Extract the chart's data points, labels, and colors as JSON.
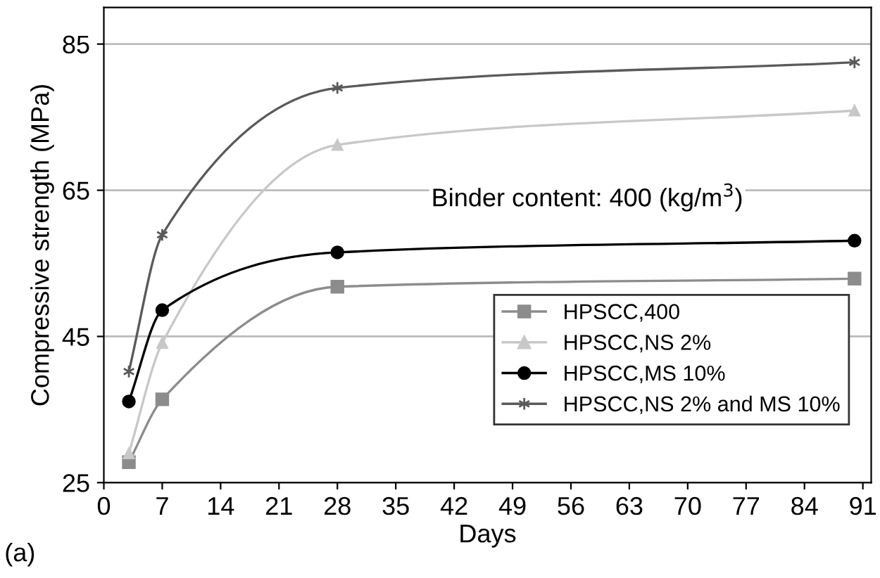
{
  "chart_data": {
    "type": "line",
    "xlabel": "Days",
    "ylabel": "Compressive strength (MPa)",
    "x": [
      3,
      7,
      28,
      90
    ],
    "series": [
      {
        "name": "HPSCC,400",
        "color": "#8c8c8c",
        "marker": "square",
        "values": [
          27.8,
          36.4,
          51.8,
          52.9
        ]
      },
      {
        "name": "HPSCC,NS 2%",
        "color": "#c8c8c8",
        "marker": "triangle",
        "values": [
          29.0,
          44.1,
          71.2,
          75.9
        ]
      },
      {
        "name": "HPSCC,MS 10%",
        "color": "#000000",
        "marker": "circle",
        "values": [
          36.1,
          48.6,
          56.5,
          58.1
        ]
      },
      {
        "name": "HPSCC,NS 2% and MS 10%",
        "color": "#5a5a5a",
        "marker": "cross",
        "values": [
          40.2,
          58.9,
          79.0,
          82.5
        ]
      }
    ],
    "xlim": [
      0,
      92
    ],
    "xticks": [
      0,
      7,
      14,
      21,
      28,
      35,
      42,
      49,
      56,
      63,
      70,
      77,
      84,
      91
    ],
    "ylim": [
      25,
      90
    ],
    "yticks": [
      25,
      45,
      65,
      85
    ],
    "grid": "y",
    "legend": "bottom right",
    "line_style": "solid",
    "annotations": [
      "Binder content: 400 (kg/m$^{3}$)",
      "(a)"
    ]
  }
}
